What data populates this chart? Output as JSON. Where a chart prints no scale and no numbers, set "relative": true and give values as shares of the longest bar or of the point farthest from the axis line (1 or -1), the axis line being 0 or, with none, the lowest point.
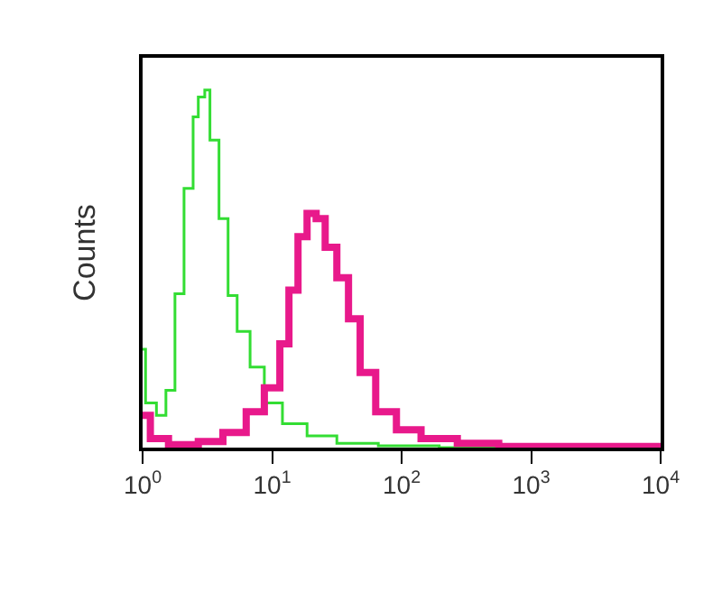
{
  "chart_data": {
    "type": "step",
    "ylabel": "Counts",
    "relative": true,
    "log": "x",
    "tick_labels": "x",
    "xlim": [
      1,
      10000
    ],
    "xticks": [
      {
        "value": 1,
        "label": "10$^{0}$"
      },
      {
        "value": 10,
        "label": "10$^{1}$"
      },
      {
        "value": 100,
        "label": "10$^{2}$"
      },
      {
        "value": 1000,
        "label": "10$^{3}$"
      },
      {
        "value": 10000,
        "label": "10$^{4}$"
      }
    ],
    "series": [
      {
        "color": "#33dd33",
        "x": [
          1,
          1.054,
          1.279,
          1.514,
          1.778,
          2.089,
          2.455,
          2.692,
          3.02,
          3.311,
          3.89,
          4.571,
          5.37,
          6.761,
          8.71,
          12.02,
          18.62,
          31.62,
          66.07,
          195,
          10000
        ],
        "values": [
          0.275,
          0.125,
          0.09,
          0.16,
          0.43,
          0.725,
          0.925,
          0.98,
          1,
          0.86,
          0.64,
          0.425,
          0.325,
          0.225,
          0.125,
          0.067,
          0.033,
          0.012,
          0.005,
          0,
          0
        ]
      },
      {
        "color": "#e8198b",
        "x": [
          1,
          1.148,
          1.585,
          2.692,
          4.169,
          6.31,
          8.71,
          11.48,
          13.49,
          15.85,
          18.62,
          21.88,
          25.7,
          31.62,
          38.9,
          47.86,
          63.1,
          91.2,
          141.3,
          269.2,
          562.3,
          10000
        ],
        "values": [
          0.09,
          0.025,
          0.008,
          0.017,
          0.042,
          0.1,
          0.167,
          0.29,
          0.44,
          0.59,
          0.655,
          0.64,
          0.56,
          0.475,
          0.36,
          0.21,
          0.1,
          0.05,
          0.025,
          0.012,
          0.003,
          0
        ]
      }
    ]
  }
}
